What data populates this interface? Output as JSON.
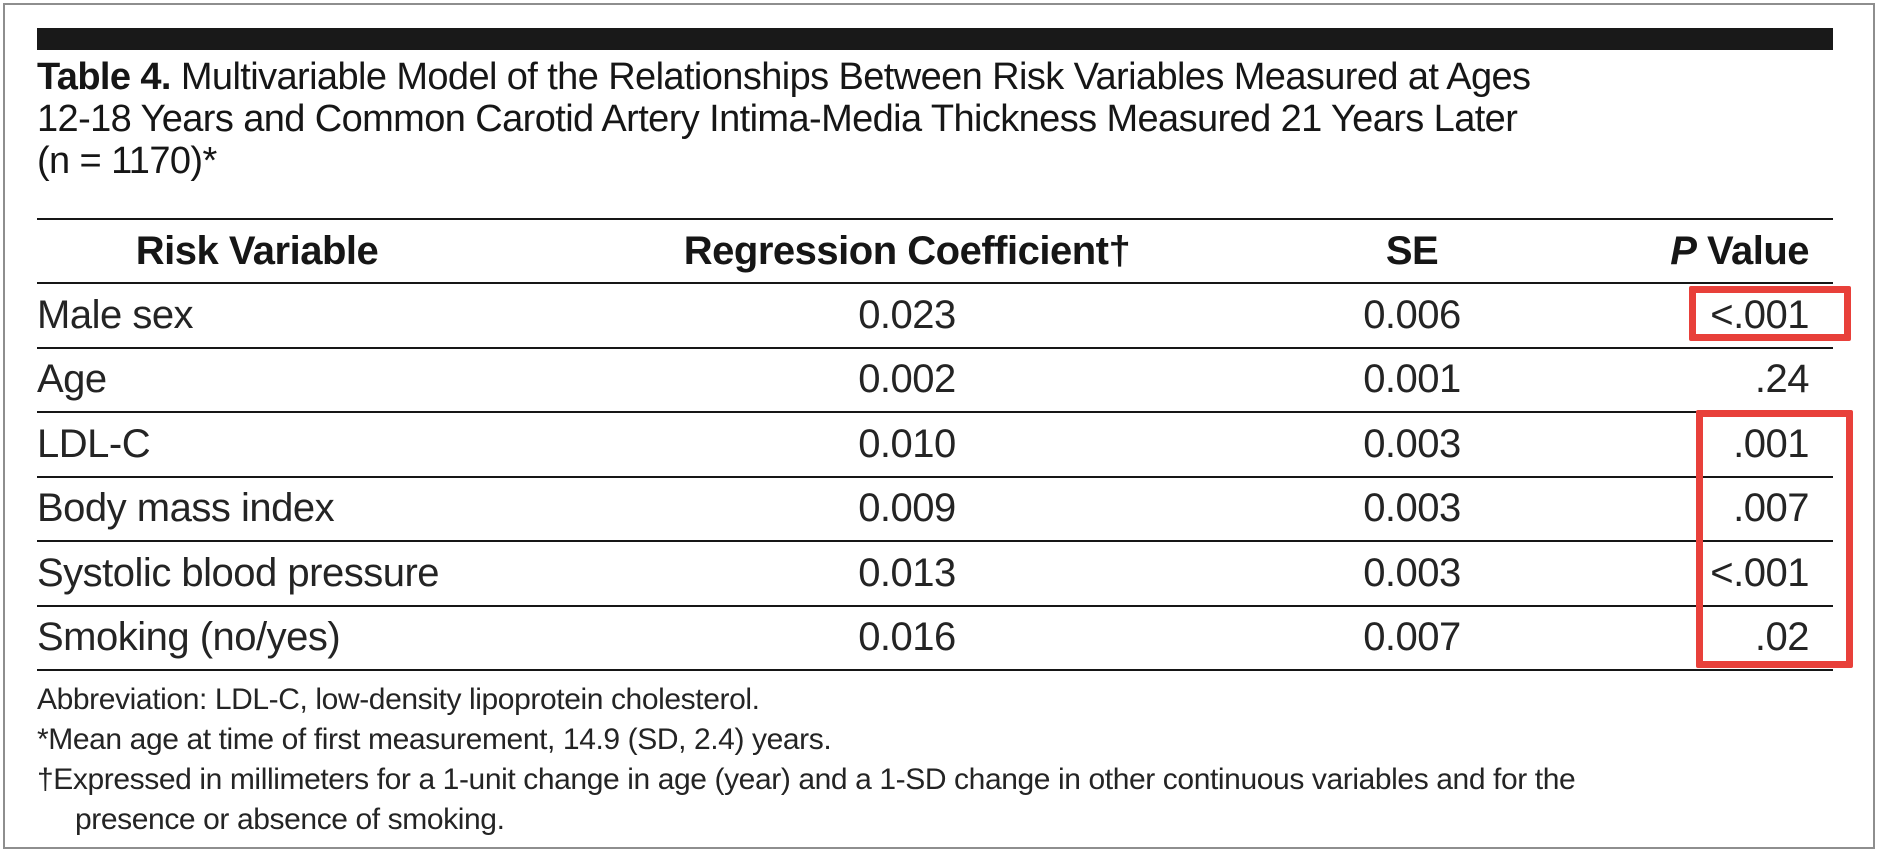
{
  "title": {
    "label": "Table 4.",
    "lines": [
      "Multivariable Model of the Relationships Between Risk Variables Measured at Ages",
      "12-18 Years and Common Carotid Artery Intima-Media Thickness Measured 21 Years Later",
      "(n = 1170)*"
    ]
  },
  "table": {
    "columns": [
      {
        "key": "variable",
        "label": "Risk Variable"
      },
      {
        "key": "coefficient",
        "label": "Regression Coefficient†"
      },
      {
        "key": "se",
        "label": "SE"
      },
      {
        "key": "p",
        "label": "P Value",
        "italic_prefix": "P"
      }
    ],
    "rows": [
      {
        "variable": "Male sex",
        "coefficient": "0.023",
        "se": "0.006",
        "p": "<.001"
      },
      {
        "variable": "Age",
        "coefficient": "0.002",
        "se": "0.001",
        "p": ".24"
      },
      {
        "variable": "LDL-C",
        "coefficient": "0.010",
        "se": "0.003",
        "p": ".001"
      },
      {
        "variable": "Body mass index",
        "coefficient": "0.009",
        "se": "0.003",
        "p": ".007"
      },
      {
        "variable": "Systolic blood pressure",
        "coefficient": "0.013",
        "se": "0.003",
        "p": "<.001"
      },
      {
        "variable": "Smoking (no/yes)",
        "coefficient": "0.016",
        "se": "0.007",
        "p": ".02"
      }
    ]
  },
  "footnotes": [
    {
      "text": "Abbreviation: LDL-C, low-density lipoprotein cholesterol.",
      "indent": false
    },
    {
      "text": "*Mean age at time of first measurement, 14.9 (SD, 2.4) years.",
      "indent": false
    },
    {
      "text": "†Expressed in millimeters for a 1-unit change in age (year) and a 1-SD change in other continuous variables and for the",
      "indent": false
    },
    {
      "text": "presence or absence of smoking.",
      "indent": true
    }
  ],
  "highlights": [
    {
      "target": "male-sex-p-value",
      "color": "#e8403a"
    },
    {
      "target": "ldl-c-through-smoking-p-values",
      "color": "#e8403a"
    }
  ],
  "colors": {
    "highlight_red": "#e8403a",
    "rule": "#161616",
    "header_bar": "#191919",
    "text": "#242424",
    "frame_border": "#8e8e8e"
  }
}
